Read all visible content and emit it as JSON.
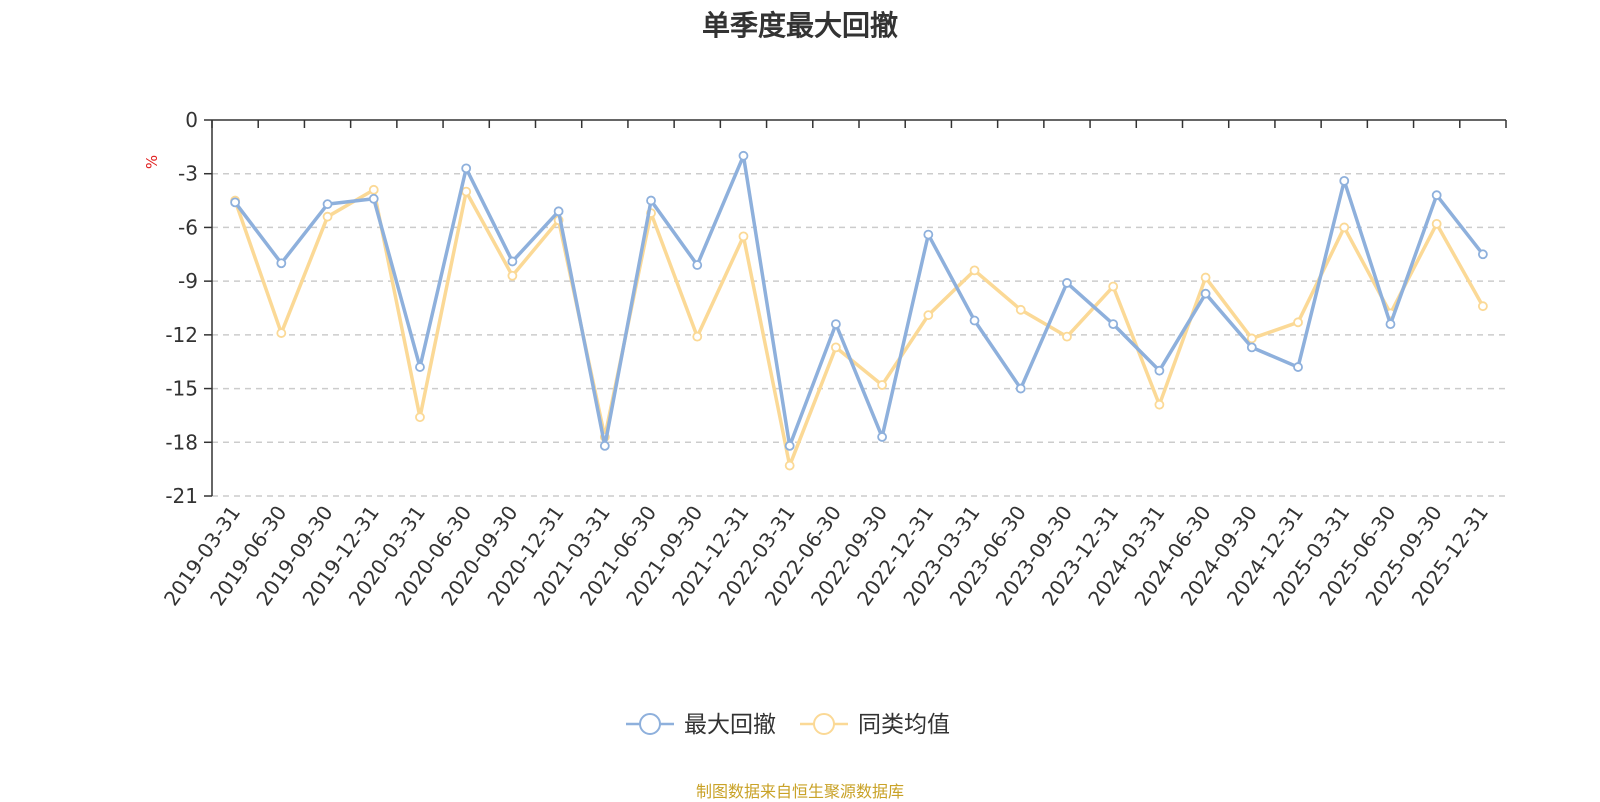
{
  "title": "单季度最大回撤",
  "source": "制图数据来自恒生聚源数据库",
  "colors": {
    "series1": "#8eb0dc",
    "series2": "#fbd996",
    "unit": "#e02020",
    "grid": "#cccccc",
    "axis": "#333333"
  },
  "chart_data": {
    "type": "line",
    "title": "单季度最大回撤",
    "ylabel": "%",
    "ylim": [
      -21,
      0
    ],
    "yticks": [
      0,
      -3,
      -6,
      -9,
      -12,
      -15,
      -18,
      -21
    ],
    "grid": true,
    "legend_position": "bottom",
    "categories": [
      "2019-03-31",
      "2019-06-30",
      "2019-09-30",
      "2019-12-31",
      "2020-03-31",
      "2020-06-30",
      "2020-09-30",
      "2020-12-31",
      "2021-03-31",
      "2021-06-30",
      "2021-09-30",
      "2021-12-31",
      "2022-03-31",
      "2022-06-30",
      "2022-09-30",
      "2022-12-31",
      "2023-03-31",
      "2023-06-30",
      "2023-09-30",
      "2023-12-31",
      "2024-03-31",
      "2024-06-30",
      "2024-09-30",
      "2024-12-31",
      "2025-03-31",
      "2025-06-30",
      "2025-09-30",
      "2025-12-31"
    ],
    "series": [
      {
        "name": "最大回撤",
        "values": [
          -4.6,
          -8.0,
          -4.7,
          -4.4,
          -13.8,
          -2.7,
          -7.9,
          -5.1,
          -18.2,
          -4.5,
          -8.1,
          -2.0,
          -18.2,
          -11.4,
          -17.7,
          -6.4,
          -11.2,
          -15.0,
          -9.1,
          -11.4,
          -14.0,
          -9.7,
          -12.7,
          -13.8,
          -3.4,
          -11.4,
          -4.2,
          -7.5
        ]
      },
      {
        "name": "同类均值",
        "values": [
          -4.5,
          -11.9,
          -5.4,
          -3.9,
          -16.6,
          -4.0,
          -8.7,
          -5.6,
          -17.7,
          -5.2,
          -12.1,
          -6.5,
          -19.3,
          -12.7,
          -14.8,
          -10.9,
          -8.4,
          -10.6,
          -12.1,
          -9.3,
          -15.9,
          -8.8,
          -12.2,
          -11.3,
          -6.0,
          -10.8,
          -5.8,
          -10.4
        ]
      }
    ]
  }
}
